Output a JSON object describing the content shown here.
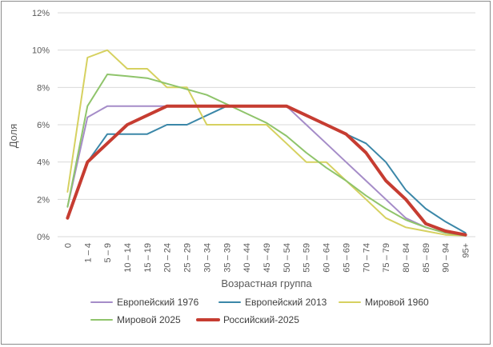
{
  "chart_data": {
    "type": "line",
    "title": "",
    "xlabel": "Возрастная группа",
    "ylabel": "Доля",
    "ylim": [
      0,
      12
    ],
    "y_ticks": [
      "0%",
      "2%",
      "4%",
      "6%",
      "8%",
      "10%",
      "12%"
    ],
    "grid": true,
    "legend_position": "bottom",
    "categories": [
      "0",
      "1 – 4",
      "5 – 9",
      "10 – 14",
      "15 – 19",
      "20 – 24",
      "25 – 29",
      "30 – 34",
      "35 – 39",
      "40 – 44",
      "45 – 49",
      "50 – 54",
      "55 – 59",
      "60 – 64",
      "65 – 69",
      "70 – 74",
      "75 – 79",
      "80 – 84",
      "85 – 89",
      "90 – 94",
      "95+"
    ],
    "series": [
      {
        "name": "Европейский 1976",
        "color": "#a58cc8",
        "width": 2,
        "values": [
          1.6,
          6.4,
          7.0,
          7.0,
          7.0,
          7.0,
          7.0,
          7.0,
          7.0,
          7.0,
          7.0,
          7.0,
          6.0,
          5.0,
          4.0,
          3.0,
          2.0,
          1.0,
          0.5,
          0.2,
          0.1
        ]
      },
      {
        "name": "Европейский 2013",
        "color": "#3b87a8",
        "width": 2,
        "values": [
          1.0,
          4.0,
          5.5,
          5.5,
          5.5,
          6.0,
          6.0,
          6.5,
          7.0,
          7.0,
          7.0,
          7.0,
          6.5,
          6.0,
          5.5,
          5.0,
          4.0,
          2.5,
          1.5,
          0.8,
          0.2
        ]
      },
      {
        "name": "Мировой 1960",
        "color": "#d6d160",
        "width": 2,
        "values": [
          2.4,
          9.6,
          10.0,
          9.0,
          9.0,
          8.0,
          8.0,
          6.0,
          6.0,
          6.0,
          6.0,
          5.0,
          4.0,
          4.0,
          3.0,
          2.0,
          1.0,
          0.5,
          0.3,
          0.1,
          0.05
        ]
      },
      {
        "name": "Мировой 2025",
        "color": "#8fc46b",
        "width": 2,
        "values": [
          1.6,
          7.0,
          8.7,
          8.6,
          8.5,
          8.2,
          7.9,
          7.6,
          7.1,
          6.6,
          6.1,
          5.4,
          4.5,
          3.7,
          3.0,
          2.2,
          1.5,
          0.9,
          0.5,
          0.2,
          0.05
        ]
      },
      {
        "name": "Российский-2025",
        "color": "#c63c31",
        "width": 4,
        "values": [
          1.0,
          4.0,
          5.0,
          6.0,
          6.5,
          7.0,
          7.0,
          7.0,
          7.0,
          7.0,
          7.0,
          7.0,
          6.5,
          6.0,
          5.5,
          4.5,
          3.0,
          2.0,
          0.7,
          0.3,
          0.1
        ]
      }
    ]
  }
}
